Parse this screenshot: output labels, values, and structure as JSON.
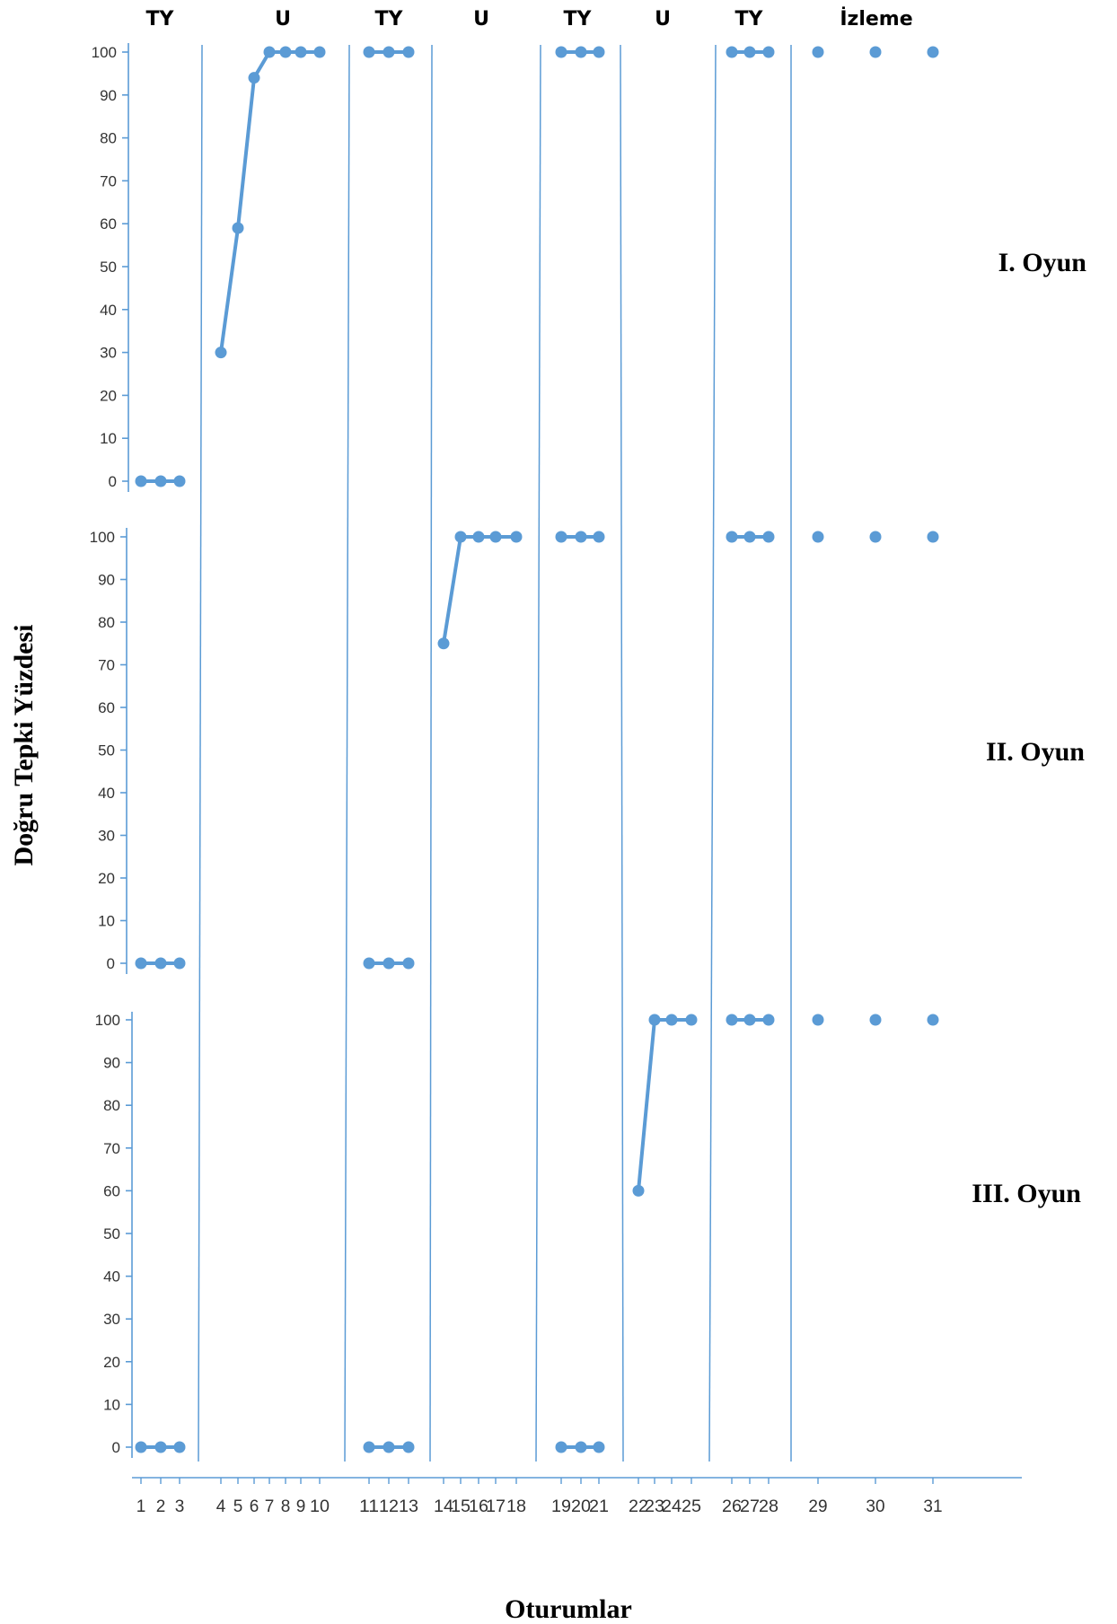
{
  "chart_data": {
    "type": "line",
    "ylabel": "Doğru Tepki Yüzdesi",
    "xlabel": "Oturumlar",
    "ylim": [
      0,
      100
    ],
    "yticks": [
      0,
      10,
      20,
      30,
      40,
      50,
      60,
      70,
      80,
      90,
      100
    ],
    "phases": [
      {
        "label": "TY",
        "sessions": [
          1,
          3
        ]
      },
      {
        "label": "U",
        "sessions": [
          4,
          10
        ]
      },
      {
        "label": "TY",
        "sessions": [
          11,
          13
        ]
      },
      {
        "label": "U",
        "sessions": [
          14,
          18
        ]
      },
      {
        "label": "TY",
        "sessions": [
          19,
          21
        ]
      },
      {
        "label": "U",
        "sessions": [
          22,
          25
        ]
      },
      {
        "label": "TY",
        "sessions": [
          26,
          28
        ]
      },
      {
        "label": "İzleme",
        "sessions": [
          29,
          31
        ]
      }
    ],
    "x_tick_labels": [
      "1",
      "2",
      "3",
      "4",
      "5",
      "6",
      "7",
      "8",
      "9",
      "10",
      "11",
      "12",
      "13",
      "14",
      "15",
      "16",
      "17",
      "18",
      "19",
      "20",
      "21",
      "22",
      "23",
      "24",
      "25",
      "26",
      "27",
      "28",
      "29",
      "30",
      "31"
    ],
    "panels": [
      {
        "name": "I. Oyun",
        "segments": [
          {
            "x": [
              1,
              2,
              3
            ],
            "y": [
              0,
              0,
              0
            ]
          },
          {
            "x": [
              4,
              5,
              6,
              7,
              8,
              9,
              10
            ],
            "y": [
              30,
              59,
              94,
              100,
              100,
              100,
              100
            ]
          },
          {
            "x": [
              11,
              12,
              13
            ],
            "y": [
              100,
              100,
              100
            ]
          },
          {
            "x": [
              19,
              20,
              21
            ],
            "y": [
              100,
              100,
              100
            ]
          },
          {
            "x": [
              26,
              27,
              28
            ],
            "y": [
              100,
              100,
              100
            ]
          },
          {
            "x": [
              29
            ],
            "y": [
              100
            ]
          },
          {
            "x": [
              30
            ],
            "y": [
              100
            ]
          },
          {
            "x": [
              31
            ],
            "y": [
              100
            ]
          }
        ]
      },
      {
        "name": "II. Oyun",
        "segments": [
          {
            "x": [
              1,
              2,
              3
            ],
            "y": [
              0,
              0,
              0
            ]
          },
          {
            "x": [
              11,
              12,
              13
            ],
            "y": [
              0,
              0,
              0
            ]
          },
          {
            "x": [
              14,
              15,
              16,
              17,
              18
            ],
            "y": [
              75,
              100,
              100,
              100,
              100
            ]
          },
          {
            "x": [
              19,
              20,
              21
            ],
            "y": [
              100,
              100,
              100
            ]
          },
          {
            "x": [
              26,
              27,
              28
            ],
            "y": [
              100,
              100,
              100
            ]
          },
          {
            "x": [
              29
            ],
            "y": [
              100
            ]
          },
          {
            "x": [
              30
            ],
            "y": [
              100
            ]
          },
          {
            "x": [
              31
            ],
            "y": [
              100
            ]
          }
        ]
      },
      {
        "name": "III. Oyun",
        "segments": [
          {
            "x": [
              1,
              2,
              3
            ],
            "y": [
              0,
              0,
              0
            ]
          },
          {
            "x": [
              11,
              12,
              13
            ],
            "y": [
              0,
              0,
              0
            ]
          },
          {
            "x": [
              19,
              20,
              21
            ],
            "y": [
              0,
              0,
              0
            ]
          },
          {
            "x": [
              22,
              23,
              24,
              25
            ],
            "y": [
              60,
              100,
              100,
              100
            ]
          },
          {
            "x": [
              26,
              27,
              28
            ],
            "y": [
              100,
              100,
              100
            ]
          },
          {
            "x": [
              29
            ],
            "y": [
              100
            ]
          },
          {
            "x": [
              30
            ],
            "y": [
              100
            ]
          },
          {
            "x": [
              31
            ],
            "y": [
              100
            ]
          }
        ]
      }
    ],
    "colors": {
      "series": "#5b9bd5",
      "divider": "#5b9bd5",
      "axis": "#5b9bd5"
    },
    "grid": false,
    "legend": "none"
  }
}
